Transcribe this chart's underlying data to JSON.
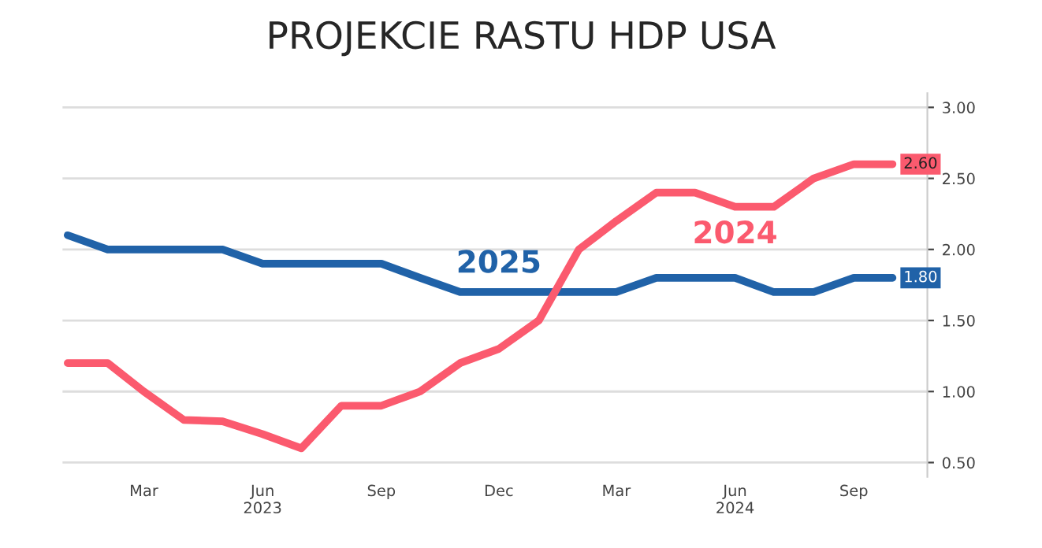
{
  "chart_data": {
    "type": "line",
    "title": "PROJEKCIE RASTU HDP USA",
    "x": [
      "2023-01",
      "2023-02",
      "2023-03",
      "2023-04",
      "2023-05",
      "2023-06",
      "2023-07",
      "2023-08",
      "2023-09",
      "2023-10",
      "2023-11",
      "2023-12",
      "2024-01",
      "2024-02",
      "2024-03",
      "2024-04",
      "2024-05",
      "2024-06",
      "2024-07",
      "2024-08",
      "2024-09",
      "2024-10"
    ],
    "series": [
      {
        "name": "2025",
        "color": "#2062a8",
        "values": [
          2.1,
          2.0,
          2.0,
          2.0,
          2.0,
          1.9,
          1.9,
          1.9,
          1.9,
          1.8,
          1.7,
          1.7,
          1.7,
          1.7,
          1.7,
          1.8,
          1.8,
          1.8,
          1.7,
          1.7,
          1.8,
          1.8
        ],
        "value_labels": [
          null,
          null,
          null,
          null,
          null,
          null,
          null,
          null,
          null,
          null,
          null,
          null,
          null,
          null,
          null,
          null,
          null,
          null,
          null,
          null,
          null,
          "1.80"
        ]
      },
      {
        "name": "2024",
        "color": "#fb5a6e",
        "values": [
          1.2,
          1.2,
          1.0,
          0.8,
          0.79,
          0.7,
          0.6,
          0.9,
          0.9,
          1.0,
          1.2,
          1.3,
          1.5,
          2.0,
          2.2,
          2.4,
          2.4,
          2.3,
          2.3,
          2.5,
          2.6,
          2.6
        ],
        "value_labels": [
          null,
          null,
          null,
          null,
          null,
          null,
          null,
          null,
          null,
          null,
          null,
          null,
          null,
          null,
          null,
          null,
          null,
          null,
          null,
          null,
          null,
          "2.60"
        ]
      }
    ],
    "xlim": [
      "2022-12-28",
      "2024-10-28"
    ],
    "xticks": [
      {
        "value": "2023-03",
        "label": "Mar"
      },
      {
        "value": "2023-06",
        "label": "Jun\n2023"
      },
      {
        "value": "2023-09",
        "label": "Sep"
      },
      {
        "value": "2023-12",
        "label": "Dec"
      },
      {
        "value": "2024-03",
        "label": "Mar"
      },
      {
        "value": "2024-06",
        "label": "Jun\n2024"
      },
      {
        "value": "2024-09",
        "label": "Sep"
      }
    ],
    "ylim": [
      0.4,
      3.1
    ],
    "yticks": [
      {
        "value": 0.5,
        "label": "0.50"
      },
      {
        "value": 1.0,
        "label": "1.00"
      },
      {
        "value": 1.5,
        "label": "1.50"
      },
      {
        "value": 2.0,
        "label": "2.00"
      },
      {
        "value": 2.5,
        "label": "2.50"
      },
      {
        "value": 3.0,
        "label": "3.00"
      }
    ],
    "grid": "y",
    "legend": false,
    "marker": "none",
    "line_style": "solid"
  }
}
